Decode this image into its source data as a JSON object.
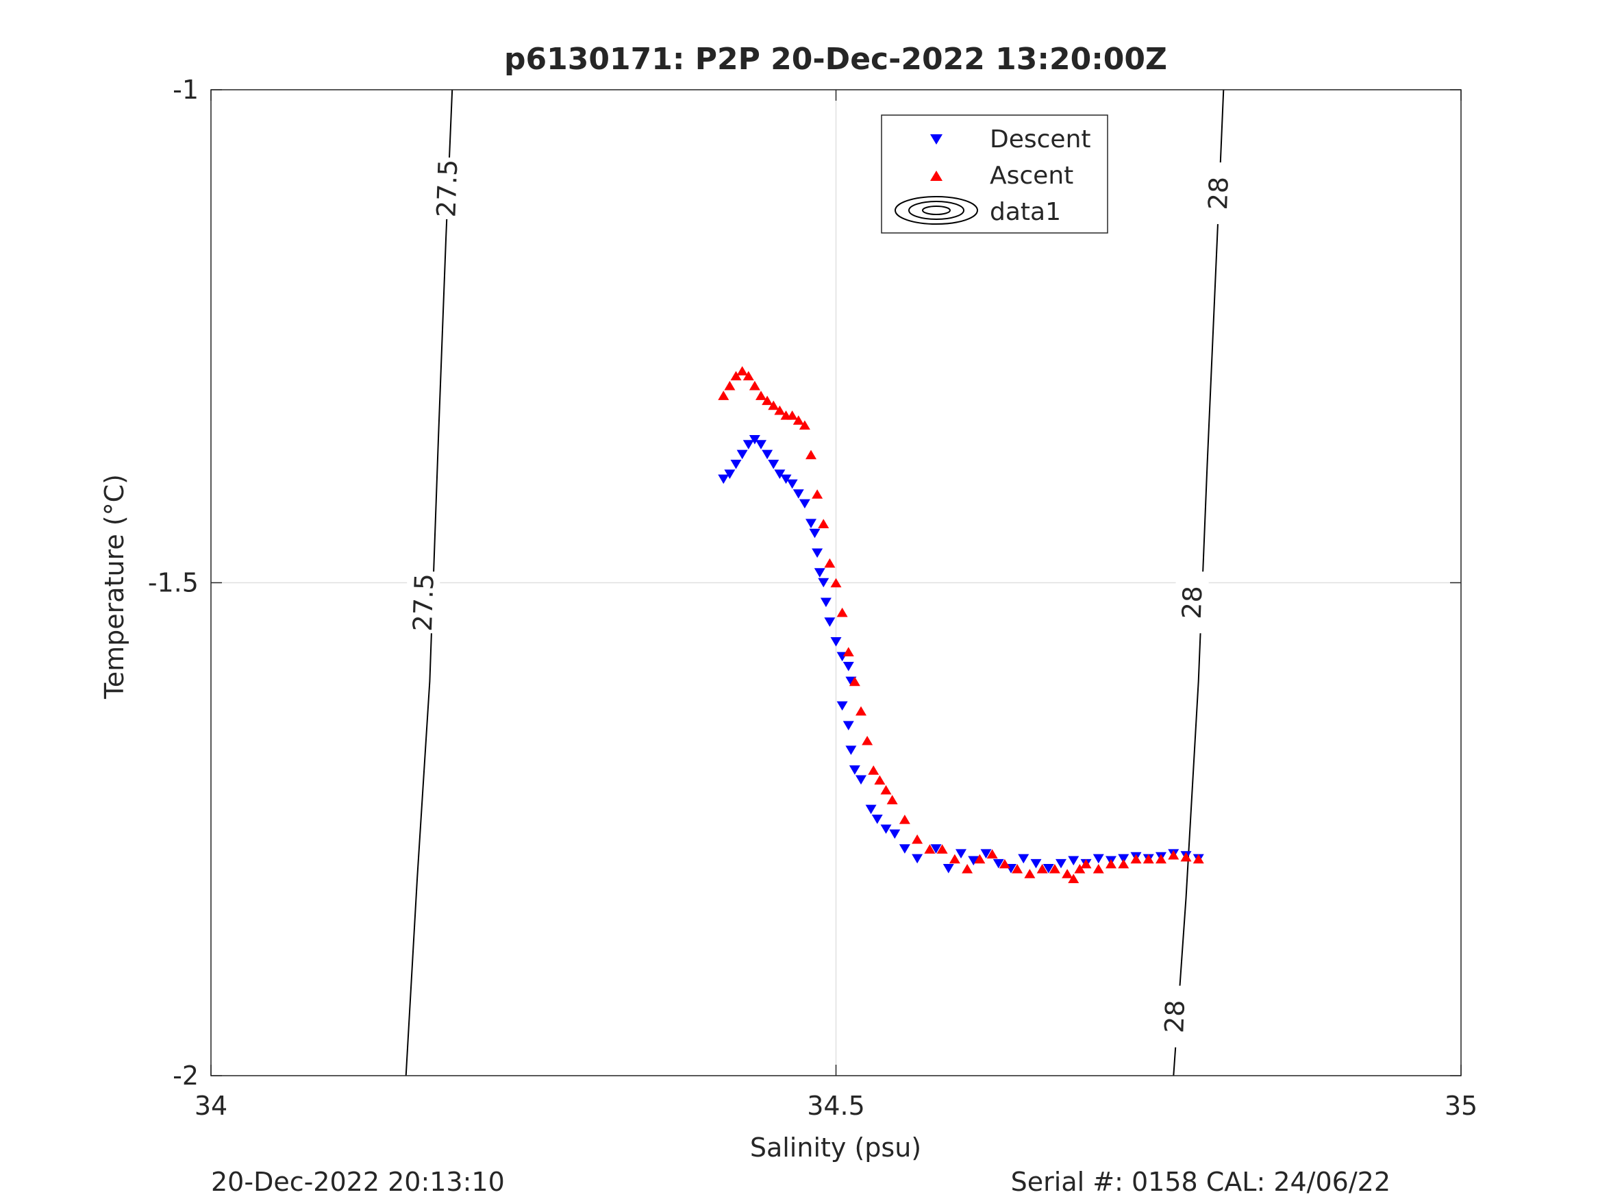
{
  "chart_data": {
    "type": "scatter",
    "title": "p6130171: P2P 20-Dec-2022 13:20:00Z",
    "xlabel": "Salinity (psu)",
    "ylabel": "Temperature (°C)",
    "xlim": [
      34,
      35
    ],
    "ylim": [
      -2,
      -1
    ],
    "xticks": [
      34,
      34.5,
      35
    ],
    "xtick_labels": [
      "34",
      "34.5",
      "35"
    ],
    "yticks": [
      -2,
      -1.5,
      -1
    ],
    "ytick_labels": [
      "-2",
      "-1.5",
      "-1"
    ],
    "grid": true,
    "legend_position": "top-center",
    "footer_left": "20-Dec-2022 20:13:10",
    "footer_right": "Serial #: 0158  CAL: 24/06/22",
    "colors": {
      "descent": "#0000ff",
      "ascent": "#ff0000",
      "contour": "#000000",
      "grid": "#e0e0e0",
      "axes": "#262626"
    },
    "contours": [
      {
        "name": "data1",
        "level_label": "27.5",
        "points": [
          [
            34.193,
            -1.0
          ],
          [
            34.188,
            -1.15
          ],
          [
            34.182,
            -1.35
          ],
          [
            34.175,
            -1.6
          ],
          [
            34.165,
            -1.8
          ],
          [
            34.156,
            -2.0
          ]
        ],
        "labels": [
          {
            "text": "27.5",
            "s": 34.189,
            "t": -1.1
          },
          {
            "text": "27.5",
            "s": 34.17,
            "t": -1.52
          }
        ]
      },
      {
        "name": "data1",
        "level_label": "28",
        "points": [
          [
            34.81,
            -1.0
          ],
          [
            34.805,
            -1.15
          ],
          [
            34.797,
            -1.38
          ],
          [
            34.79,
            -1.6
          ],
          [
            34.78,
            -1.82
          ],
          [
            34.77,
            -2.0
          ]
        ],
        "labels": [
          {
            "text": "28",
            "s": 34.806,
            "t": -1.105
          },
          {
            "text": "28",
            "s": 34.785,
            "t": -1.52
          },
          {
            "text": "28",
            "s": 34.771,
            "t": -1.94
          }
        ]
      }
    ],
    "series": [
      {
        "name": "Descent",
        "marker": "triangle-down",
        "points": [
          [
            34.41,
            -1.395
          ],
          [
            34.415,
            -1.39
          ],
          [
            34.42,
            -1.38
          ],
          [
            34.425,
            -1.37
          ],
          [
            34.43,
            -1.36
          ],
          [
            34.435,
            -1.355
          ],
          [
            34.44,
            -1.36
          ],
          [
            34.445,
            -1.37
          ],
          [
            34.45,
            -1.38
          ],
          [
            34.455,
            -1.39
          ],
          [
            34.46,
            -1.395
          ],
          [
            34.465,
            -1.4
          ],
          [
            34.47,
            -1.41
          ],
          [
            34.475,
            -1.42
          ],
          [
            34.48,
            -1.44
          ],
          [
            34.483,
            -1.45
          ],
          [
            34.485,
            -1.47
          ],
          [
            34.487,
            -1.49
          ],
          [
            34.49,
            -1.5
          ],
          [
            34.492,
            -1.52
          ],
          [
            34.495,
            -1.54
          ],
          [
            34.5,
            -1.56
          ],
          [
            34.505,
            -1.575
          ],
          [
            34.51,
            -1.585
          ],
          [
            34.512,
            -1.6
          ],
          [
            34.505,
            -1.625
          ],
          [
            34.51,
            -1.645
          ],
          [
            34.512,
            -1.67
          ],
          [
            34.515,
            -1.69
          ],
          [
            34.52,
            -1.7
          ],
          [
            34.528,
            -1.73
          ],
          [
            34.533,
            -1.74
          ],
          [
            34.54,
            -1.75
          ],
          [
            34.547,
            -1.755
          ],
          [
            34.555,
            -1.77
          ],
          [
            34.565,
            -1.78
          ],
          [
            34.58,
            -1.77
          ],
          [
            34.59,
            -1.79
          ],
          [
            34.6,
            -1.775
          ],
          [
            34.61,
            -1.782
          ],
          [
            34.62,
            -1.775
          ],
          [
            34.63,
            -1.785
          ],
          [
            34.64,
            -1.79
          ],
          [
            34.65,
            -1.78
          ],
          [
            34.66,
            -1.785
          ],
          [
            34.67,
            -1.79
          ],
          [
            34.68,
            -1.785
          ],
          [
            34.69,
            -1.782
          ],
          [
            34.7,
            -1.785
          ],
          [
            34.71,
            -1.78
          ],
          [
            34.72,
            -1.782
          ],
          [
            34.73,
            -1.78
          ],
          [
            34.74,
            -1.778
          ],
          [
            34.75,
            -1.78
          ],
          [
            34.76,
            -1.778
          ],
          [
            34.77,
            -1.775
          ],
          [
            34.78,
            -1.777
          ],
          [
            34.79,
            -1.78
          ]
        ]
      },
      {
        "name": "Ascent",
        "marker": "triangle-up",
        "points": [
          [
            34.41,
            -1.31
          ],
          [
            34.415,
            -1.3
          ],
          [
            34.42,
            -1.29
          ],
          [
            34.425,
            -1.285
          ],
          [
            34.43,
            -1.29
          ],
          [
            34.435,
            -1.3
          ],
          [
            34.44,
            -1.31
          ],
          [
            34.445,
            -1.315
          ],
          [
            34.45,
            -1.32
          ],
          [
            34.455,
            -1.325
          ],
          [
            34.46,
            -1.33
          ],
          [
            34.465,
            -1.33
          ],
          [
            34.47,
            -1.335
          ],
          [
            34.475,
            -1.34
          ],
          [
            34.48,
            -1.37
          ],
          [
            34.485,
            -1.41
          ],
          [
            34.49,
            -1.44
          ],
          [
            34.495,
            -1.48
          ],
          [
            34.5,
            -1.5
          ],
          [
            34.505,
            -1.53
          ],
          [
            34.51,
            -1.57
          ],
          [
            34.515,
            -1.6
          ],
          [
            34.52,
            -1.63
          ],
          [
            34.525,
            -1.66
          ],
          [
            34.53,
            -1.69
          ],
          [
            34.535,
            -1.7
          ],
          [
            34.54,
            -1.71
          ],
          [
            34.545,
            -1.72
          ],
          [
            34.555,
            -1.74
          ],
          [
            34.565,
            -1.76
          ],
          [
            34.575,
            -1.77
          ],
          [
            34.585,
            -1.77
          ],
          [
            34.595,
            -1.78
          ],
          [
            34.605,
            -1.79
          ],
          [
            34.615,
            -1.78
          ],
          [
            34.625,
            -1.775
          ],
          [
            34.635,
            -1.785
          ],
          [
            34.645,
            -1.79
          ],
          [
            34.655,
            -1.795
          ],
          [
            34.665,
            -1.79
          ],
          [
            34.675,
            -1.79
          ],
          [
            34.685,
            -1.795
          ],
          [
            34.69,
            -1.8
          ],
          [
            34.695,
            -1.79
          ],
          [
            34.7,
            -1.785
          ],
          [
            34.71,
            -1.79
          ],
          [
            34.72,
            -1.785
          ],
          [
            34.73,
            -1.785
          ],
          [
            34.74,
            -1.78
          ],
          [
            34.75,
            -1.78
          ],
          [
            34.76,
            -1.78
          ],
          [
            34.77,
            -1.776
          ],
          [
            34.78,
            -1.778
          ],
          [
            34.79,
            -1.78
          ]
        ]
      }
    ]
  }
}
